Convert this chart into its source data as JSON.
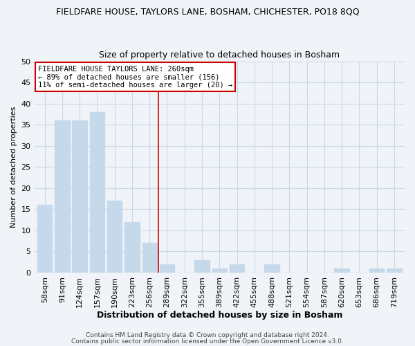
{
  "title": "FIELDFARE HOUSE, TAYLORS LANE, BOSHAM, CHICHESTER, PO18 8QQ",
  "subtitle": "Size of property relative to detached houses in Bosham",
  "xlabel": "Distribution of detached houses by size in Bosham",
  "ylabel": "Number of detached properties",
  "bar_labels": [
    "58sqm",
    "91sqm",
    "124sqm",
    "157sqm",
    "190sqm",
    "223sqm",
    "256sqm",
    "289sqm",
    "322sqm",
    "355sqm",
    "389sqm",
    "422sqm",
    "455sqm",
    "488sqm",
    "521sqm",
    "554sqm",
    "587sqm",
    "620sqm",
    "653sqm",
    "686sqm",
    "719sqm"
  ],
  "bar_values": [
    16,
    36,
    36,
    38,
    17,
    12,
    7,
    2,
    0,
    3,
    1,
    2,
    0,
    2,
    0,
    0,
    0,
    1,
    0,
    1,
    1
  ],
  "bar_color": "#c5d9ea",
  "ylim": [
    0,
    50
  ],
  "yticks": [
    0,
    5,
    10,
    15,
    20,
    25,
    30,
    35,
    40,
    45,
    50
  ],
  "annotation_line1": "FIELDFARE HOUSE TAYLORS LANE: 260sqm",
  "annotation_line2": "← 89% of detached houses are smaller (156)",
  "annotation_line3": "11% of semi-detached houses are larger (20) →",
  "annotation_box_color": "#ffffff",
  "annotation_box_edgecolor": "#cc0000",
  "vertical_line_color": "#cc0000",
  "highlight_bar_index": 6,
  "footer_line1": "Contains HM Land Registry data © Crown copyright and database right 2024.",
  "footer_line2": "Contains public sector information licensed under the Open Government Licence v3.0.",
  "bg_color": "#f0f4f8",
  "plot_bg_color": "#f0f4f8",
  "grid_color": "#c8d8e8",
  "title_fontsize": 9,
  "subtitle_fontsize": 9,
  "ylabel_fontsize": 8,
  "xlabel_fontsize": 9,
  "tick_fontsize": 8,
  "footer_fontsize": 6.5
}
